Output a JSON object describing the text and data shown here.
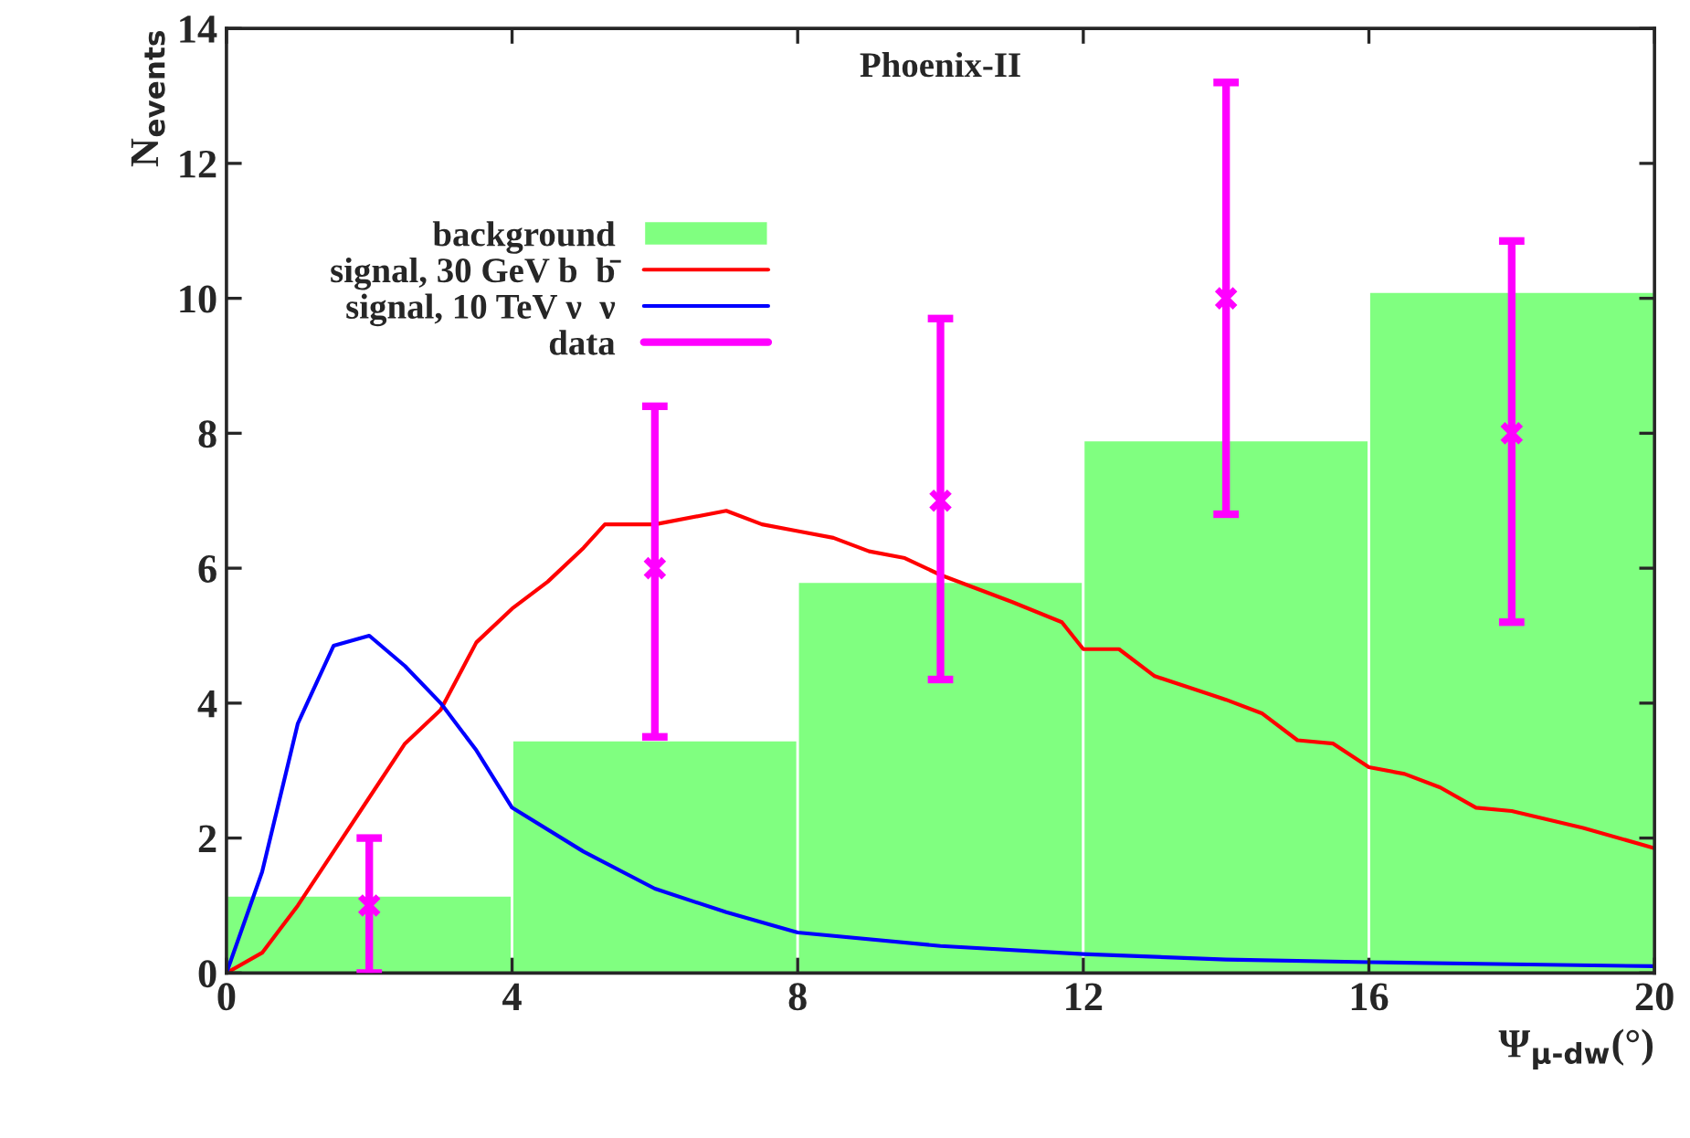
{
  "chart_data": {
    "type": "histogram",
    "title": "Phoenix-II",
    "xlabel": "Ψ$_{μ-dw}$(°)",
    "ylabel": "N$_{events}$",
    "xlim": [
      0,
      20
    ],
    "xticks": [
      0,
      4,
      8,
      12,
      16,
      20
    ],
    "ylim": [
      0,
      14
    ],
    "yticks": [
      0,
      2,
      4,
      6,
      8,
      10,
      12,
      14
    ],
    "grid": false,
    "legend": "top left",
    "series": [
      {
        "name": "background",
        "color": "#80ff80",
        "bins": [
          0,
          4,
          8,
          12,
          16,
          20
        ],
        "values": [
          1.15,
          3.45,
          5.8,
          7.9,
          10.1
        ]
      },
      {
        "name": "signal, 30 GeV b  b̄",
        "type": "line",
        "color": "#ff0000",
        "x": [
          0,
          0.5,
          1,
          1.5,
          2,
          2.5,
          3,
          3.5,
          4,
          4.5,
          5,
          5.3,
          6,
          7,
          7.5,
          8,
          8.5,
          9,
          9.5,
          10,
          11,
          11.7,
          12,
          12.5,
          13,
          14,
          14.5,
          15,
          15.5,
          16,
          16.5,
          17,
          17.5,
          18,
          19,
          20
        ],
        "values": [
          0,
          0.3,
          1.0,
          1.8,
          2.6,
          3.4,
          3.9,
          4.9,
          5.4,
          5.8,
          6.3,
          6.65,
          6.65,
          6.85,
          6.65,
          6.55,
          6.45,
          6.25,
          6.15,
          5.9,
          5.5,
          5.2,
          4.8,
          4.8,
          4.4,
          4.05,
          3.85,
          3.45,
          3.4,
          3.05,
          2.95,
          2.75,
          2.45,
          2.4,
          2.15,
          1.85
        ]
      },
      {
        "name": "signal, 10 TeV ν  ν",
        "type": "line",
        "color": "#0000ff",
        "x": [
          0,
          0.5,
          1,
          1.5,
          2,
          2.5,
          3,
          3.5,
          4,
          5,
          6,
          7,
          8,
          10,
          12,
          14,
          16,
          18,
          20
        ],
        "values": [
          0,
          1.5,
          3.7,
          4.85,
          5.0,
          4.55,
          4.0,
          3.3,
          2.45,
          1.8,
          1.25,
          0.9,
          0.6,
          0.4,
          0.28,
          0.2,
          0.16,
          0.13,
          0.1
        ]
      },
      {
        "name": "data",
        "type": "scatter",
        "marker": "cross",
        "color": "#ff00ff",
        "x": [
          2,
          6,
          10,
          14,
          18
        ],
        "values": [
          1,
          6,
          7,
          10,
          8
        ],
        "errors": [
          [
            0,
            2
          ],
          [
            3.5,
            8.4
          ],
          [
            4.35,
            9.7
          ],
          [
            6.8,
            13.2
          ],
          [
            5.2,
            10.85
          ]
        ]
      }
    ]
  }
}
